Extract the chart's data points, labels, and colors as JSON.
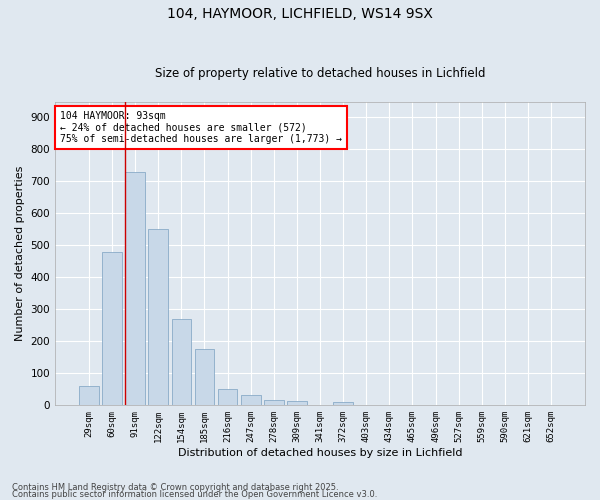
{
  "title1": "104, HAYMOOR, LICHFIELD, WS14 9SX",
  "title2": "Size of property relative to detached houses in Lichfield",
  "xlabel": "Distribution of detached houses by size in Lichfield",
  "ylabel": "Number of detached properties",
  "categories": [
    "29sqm",
    "60sqm",
    "91sqm",
    "122sqm",
    "154sqm",
    "185sqm",
    "216sqm",
    "247sqm",
    "278sqm",
    "309sqm",
    "341sqm",
    "372sqm",
    "403sqm",
    "434sqm",
    "465sqm",
    "496sqm",
    "527sqm",
    "559sqm",
    "590sqm",
    "621sqm",
    "652sqm"
  ],
  "values": [
    60,
    480,
    730,
    550,
    270,
    175,
    50,
    30,
    15,
    12,
    0,
    10,
    0,
    0,
    0,
    0,
    0,
    0,
    0,
    0,
    0
  ],
  "bar_color": "#c8d8e8",
  "bar_edge_color": "#7aa0c0",
  "bg_color": "#e0e8f0",
  "grid_color": "#ffffff",
  "vline_color": "#cc0000",
  "vline_x_index": 2,
  "annotation_line1": "104 HAYMOOR: 93sqm",
  "annotation_line2": "← 24% of detached houses are smaller (572)",
  "annotation_line3": "75% of semi-detached houses are larger (1,773) →",
  "footer1": "Contains HM Land Registry data © Crown copyright and database right 2025.",
  "footer2": "Contains public sector information licensed under the Open Government Licence v3.0.",
  "ylim": [
    0,
    950
  ],
  "yticks": [
    0,
    100,
    200,
    300,
    400,
    500,
    600,
    700,
    800,
    900
  ]
}
